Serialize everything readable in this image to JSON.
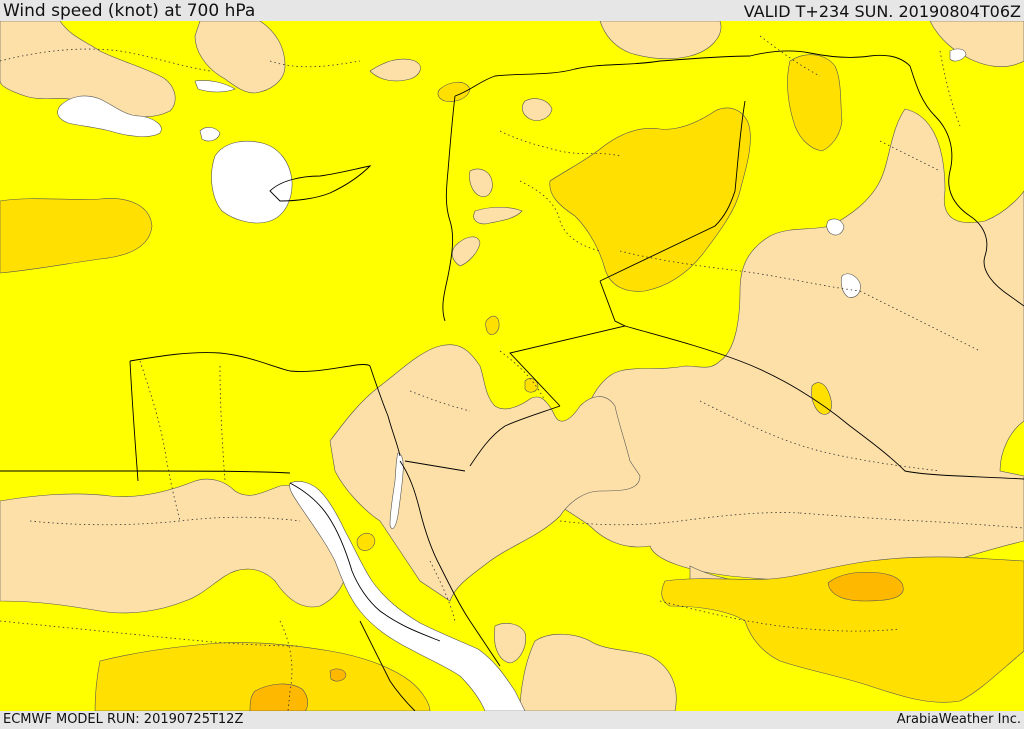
{
  "header": {
    "title": "Wind speed (knot) at 700 hPa",
    "valid": "VALID T+234 SUN. 20190804T06Z"
  },
  "footer": {
    "model_run": "ECMWF MODEL RUN: 20190725T12Z",
    "credit": "ArabiaWeather Inc."
  },
  "colors": {
    "yellow": "#ffff00",
    "light_tan": "#fde0a8",
    "gold": "#ffe000",
    "orange": "#ffb800",
    "calm_white": "#ffffff",
    "border_line": "#000000"
  }
}
